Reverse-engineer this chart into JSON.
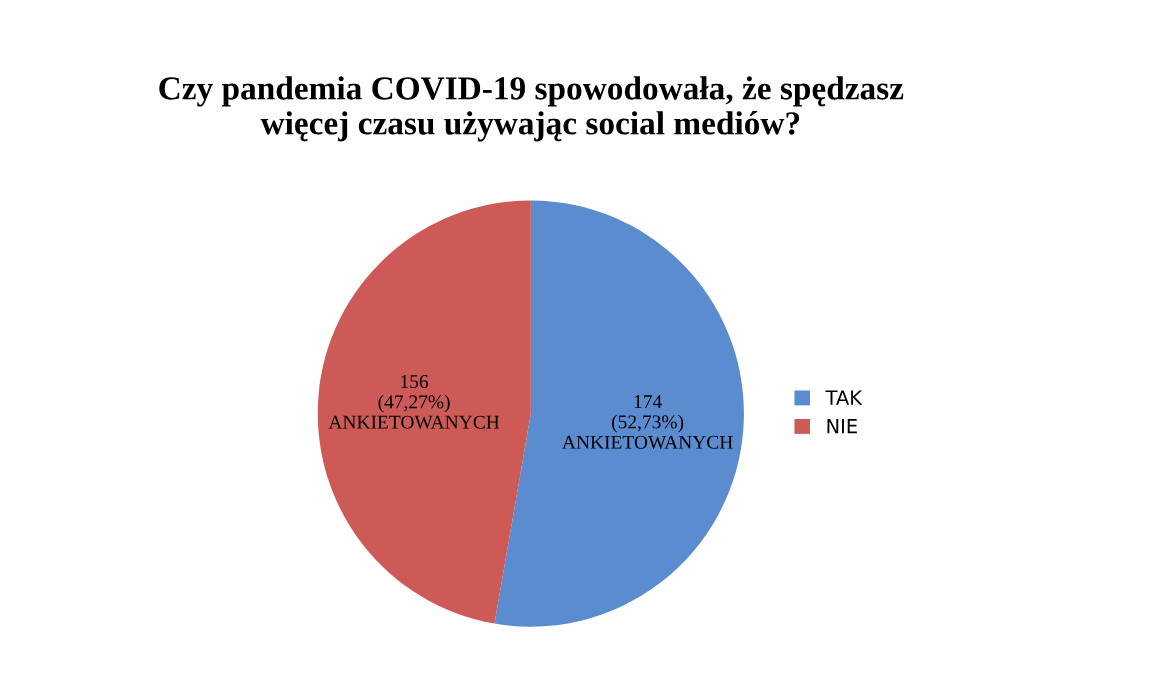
{
  "chart_data": {
    "type": "pie",
    "title": "Czy pandemia COVID-19 spowodowała, że spędzasz\nwięcej czasu używając social mediów?",
    "categories": [
      "TAK",
      "NIE"
    ],
    "values": [
      174,
      156
    ],
    "colors": [
      "#5b8ccf",
      "#cd5a56"
    ],
    "value_labels": [
      "174\n(52,73%)\nANKIETOWANYCH",
      "156\n(47,27%)\nANKIETOWANYCH"
    ],
    "legend": "right"
  }
}
